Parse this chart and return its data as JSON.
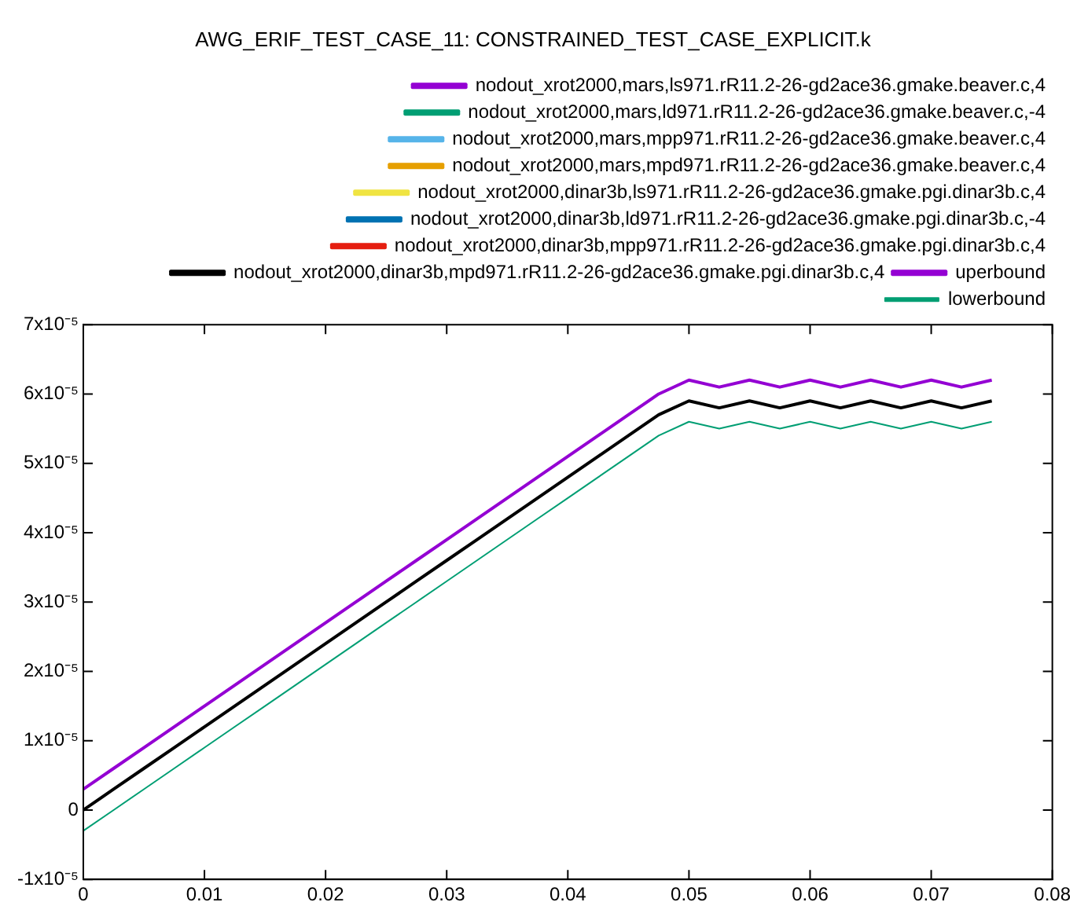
{
  "chart_data": {
    "type": "line",
    "title": "AWG_ERIF_TEST_CASE_11: CONSTRAINED_TEST_CASE_EXPLICIT.k",
    "x": [
      0,
      0.0025,
      0.005,
      0.0075,
      0.01,
      0.0125,
      0.015,
      0.0175,
      0.02,
      0.0225,
      0.025,
      0.0275,
      0.03,
      0.0325,
      0.035,
      0.0375,
      0.04,
      0.0425,
      0.045,
      0.0475,
      0.05,
      0.0525,
      0.055,
      0.0575,
      0.06,
      0.0625,
      0.065,
      0.0675,
      0.07,
      0.0725,
      0.075
    ],
    "xlim": [
      0,
      0.08
    ],
    "xticks": [
      0,
      0.01,
      0.02,
      0.03,
      0.04,
      0.05,
      0.06,
      0.07,
      0.08
    ],
    "ylim": [
      -1e-05,
      7e-05
    ],
    "yticks": [
      {
        "value": -1e-05,
        "label": "-1x10⁻⁵"
      },
      {
        "value": 0,
        "label": "0"
      },
      {
        "value": 1e-05,
        "label": "1x10⁻⁵"
      },
      {
        "value": 2e-05,
        "label": "2x10⁻⁵"
      },
      {
        "value": 3e-05,
        "label": "3x10⁻⁵"
      },
      {
        "value": 4e-05,
        "label": "4x10⁻⁵"
      },
      {
        "value": 5e-05,
        "label": "5x10⁻⁵"
      },
      {
        "value": 6e-05,
        "label": "6x10⁻⁵"
      },
      {
        "value": 7e-05,
        "label": "7x10⁻⁵"
      }
    ],
    "grid": false,
    "legend": "top",
    "line_style": "solid",
    "series": [
      {
        "name": "nodout_xrot2000,mars,ls971.rR11.2-26-gd2ace36.gmake.beaver.c,4",
        "color": "#9400d3",
        "values": [
          null,
          null,
          null,
          null,
          null,
          null,
          null,
          null,
          null,
          null,
          null,
          null,
          null,
          null,
          null,
          null,
          null,
          null,
          null,
          null,
          null,
          null,
          null,
          null,
          null,
          null,
          null,
          null,
          null,
          null,
          null
        ]
      },
      {
        "name": "nodout_xrot2000,mars,ld971.rR11.2-26-gd2ace36.gmake.beaver.c,-4",
        "color": "#009e73",
        "values": [
          null,
          null,
          null,
          null,
          null,
          null,
          null,
          null,
          null,
          null,
          null,
          null,
          null,
          null,
          null,
          null,
          null,
          null,
          null,
          null,
          null,
          null,
          null,
          null,
          null,
          null,
          null,
          null,
          null,
          null,
          null
        ]
      },
      {
        "name": "nodout_xrot2000,mars,mpp971.rR11.2-26-gd2ace36.gmake.beaver.c,4",
        "color": "#56b4e9",
        "values": [
          null,
          null,
          null,
          null,
          null,
          null,
          null,
          null,
          null,
          null,
          null,
          null,
          null,
          null,
          null,
          null,
          null,
          null,
          null,
          null,
          null,
          null,
          null,
          null,
          null,
          null,
          null,
          null,
          null,
          null,
          null
        ]
      },
      {
        "name": "nodout_xrot2000,mars,mpd971.rR11.2-26-gd2ace36.gmake.beaver.c,4",
        "color": "#e69f00",
        "values": [
          null,
          null,
          null,
          null,
          null,
          null,
          null,
          null,
          null,
          null,
          null,
          null,
          null,
          null,
          null,
          null,
          null,
          null,
          null,
          null,
          null,
          null,
          null,
          null,
          null,
          null,
          null,
          null,
          null,
          null,
          null
        ]
      },
      {
        "name": "nodout_xrot2000,dinar3b,ls971.rR11.2-26-gd2ace36.gmake.pgi.dinar3b.c,4",
        "color": "#f0e442",
        "values": [
          null,
          null,
          null,
          null,
          null,
          null,
          null,
          null,
          null,
          null,
          null,
          null,
          null,
          null,
          null,
          null,
          null,
          null,
          null,
          null,
          null,
          null,
          null,
          null,
          null,
          null,
          null,
          null,
          null,
          null,
          null
        ]
      },
      {
        "name": "nodout_xrot2000,dinar3b,ld971.rR11.2-26-gd2ace36.gmake.pgi.dinar3b.c,-4",
        "color": "#0072b2",
        "values": [
          null,
          null,
          null,
          null,
          null,
          null,
          null,
          null,
          null,
          null,
          null,
          null,
          null,
          null,
          null,
          null,
          null,
          null,
          null,
          null,
          null,
          null,
          null,
          null,
          null,
          null,
          null,
          null,
          null,
          null,
          null
        ]
      },
      {
        "name": "nodout_xrot2000,dinar3b,mpp971.rR11.2-26-gd2ace36.gmake.pgi.dinar3b.c,4",
        "color": "#e51e10",
        "values": [
          null,
          null,
          null,
          null,
          null,
          null,
          null,
          null,
          null,
          null,
          null,
          null,
          null,
          null,
          null,
          null,
          null,
          null,
          null,
          null,
          null,
          null,
          null,
          null,
          null,
          null,
          null,
          null,
          null,
          null,
          null
        ]
      },
      {
        "name": "nodout_xrot2000,dinar3b,mpd971.rR11.2-26-gd2ace36.gmake.pgi.dinar3b.c,4",
        "color": "#000000",
        "values": [
          0,
          3e-06,
          6e-06,
          9e-06,
          1.2e-05,
          1.5e-05,
          1.8e-05,
          2.1e-05,
          2.4e-05,
          2.7e-05,
          3e-05,
          3.3e-05,
          3.6e-05,
          3.9e-05,
          4.2e-05,
          4.5e-05,
          4.8e-05,
          5.1e-05,
          5.4e-05,
          5.7e-05,
          5.9e-05,
          5.8e-05,
          5.9e-05,
          5.8e-05,
          5.9e-05,
          5.8e-05,
          5.9e-05,
          5.8e-05,
          5.9e-05,
          5.8e-05,
          5.9e-05
        ]
      },
      {
        "name": "uperbound",
        "color": "#9400d3",
        "values": [
          3e-06,
          6e-06,
          9e-06,
          1.2e-05,
          1.5e-05,
          1.8e-05,
          2.1e-05,
          2.4e-05,
          2.7e-05,
          3e-05,
          3.3e-05,
          3.6e-05,
          3.9e-05,
          4.2e-05,
          4.5e-05,
          4.8e-05,
          5.1e-05,
          5.4e-05,
          5.7e-05,
          6e-05,
          6.2e-05,
          6.1e-05,
          6.2e-05,
          6.1e-05,
          6.2e-05,
          6.1e-05,
          6.2e-05,
          6.1e-05,
          6.2e-05,
          6.1e-05,
          6.2e-05
        ]
      },
      {
        "name": "lowerbound",
        "color": "#009e73",
        "values": [
          -3e-06,
          0,
          3e-06,
          6e-06,
          9e-06,
          1.2e-05,
          1.5e-05,
          1.8e-05,
          2.1e-05,
          2.4e-05,
          2.7e-05,
          3e-05,
          3.3e-05,
          3.6e-05,
          3.9e-05,
          4.2e-05,
          4.5e-05,
          4.8e-05,
          5.1e-05,
          5.4e-05,
          5.6e-05,
          5.5e-05,
          5.6e-05,
          5.5e-05,
          5.6e-05,
          5.5e-05,
          5.6e-05,
          5.5e-05,
          5.6e-05,
          5.5e-05,
          5.6e-05
        ]
      }
    ]
  }
}
